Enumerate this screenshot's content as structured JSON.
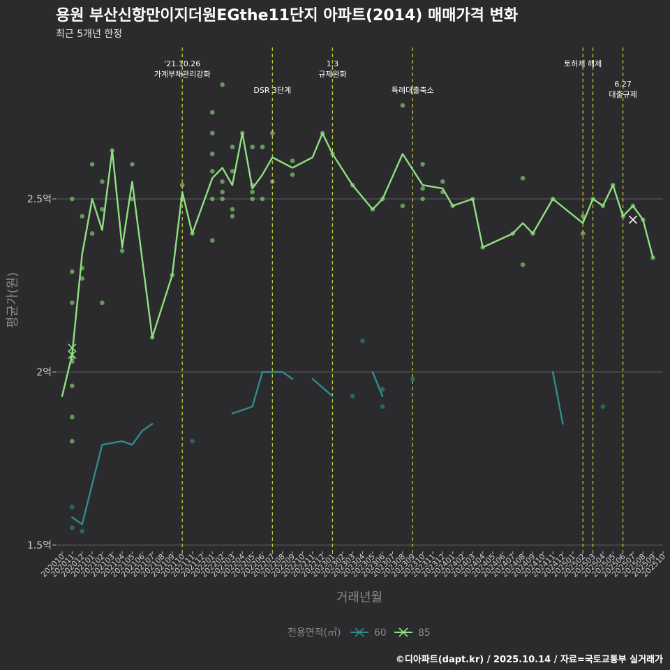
{
  "title": "용원 부산신항만이지더원EGthe11단지 아파트(2014) 매매가격 변화",
  "subtitle": "최근 5개년 한정",
  "caption": "©디아파트(dapt.kr) / 2025.10.14 / 자료=국토교통부 실거래가",
  "chart_data": {
    "type": "line",
    "xlabel": "거래년월",
    "ylabel": "평균가(원)",
    "ylim": [
      1.47,
      3.0
    ],
    "y_ticks": [
      {
        "value": 1.5,
        "label": "1.5억"
      },
      {
        "value": 2.0,
        "label": "2억"
      },
      {
        "value": 2.5,
        "label": "2.5억"
      }
    ],
    "categories": [
      "202010",
      "202011",
      "202012",
      "202101",
      "202102",
      "202103",
      "202104",
      "202105",
      "202106",
      "202107",
      "202108",
      "202109",
      "202110",
      "202111",
      "202112",
      "202201",
      "202202",
      "202203",
      "202204",
      "202205",
      "202206",
      "202207",
      "202208",
      "202209",
      "202210",
      "202211",
      "202212",
      "202301",
      "202302",
      "202303",
      "202304",
      "202305",
      "202306",
      "202307",
      "202308",
      "202309",
      "202310",
      "202311",
      "202312",
      "202401",
      "202402",
      "202403",
      "202404",
      "202405",
      "202406",
      "202407",
      "202408",
      "202409",
      "202410",
      "202411",
      "202412",
      "202501",
      "202502",
      "202503",
      "202504",
      "202505",
      "202506",
      "202507",
      "202508",
      "202509",
      "202510"
    ],
    "legend": {
      "title": "전용면적(㎡)",
      "items": [
        {
          "label": "60",
          "color": "#2e8d8f"
        },
        {
          "label": "85",
          "color": "#90e080"
        }
      ]
    },
    "colors": {
      "s60": "#2e8d8f",
      "s85": "#90e080",
      "event": "#c8d43a"
    },
    "events": [
      {
        "x": 12,
        "lines": [
          "'21.10.26",
          "가계부채관리강화"
        ],
        "row": 0
      },
      {
        "x": 21,
        "lines": [
          "DSR 3단계"
        ],
        "row": 1
      },
      {
        "x": 27,
        "lines": [
          "1.3",
          "규제완화"
        ],
        "row": 0
      },
      {
        "x": 35,
        "lines": [
          "특례대출축소"
        ],
        "row": 1
      },
      {
        "x": 52,
        "lines": [
          "토허제 해제"
        ],
        "row": 0
      },
      {
        "x": 53,
        "lines": [],
        "row": 0
      },
      {
        "x": 56,
        "lines": [
          "6.27",
          "대출규제"
        ],
        "row": 2
      }
    ],
    "series": [
      {
        "name": "60",
        "segments": [
          [
            [
              1,
              1.58
            ],
            [
              2,
              1.56
            ],
            [
              4,
              1.79
            ],
            [
              6,
              1.8
            ],
            [
              7,
              1.79
            ],
            [
              8,
              1.83
            ],
            [
              9,
              1.85
            ]
          ],
          [
            [
              17,
              1.88
            ],
            [
              19,
              1.9
            ],
            [
              20,
              2.0
            ],
            [
              22,
              2.0
            ],
            [
              23,
              1.98
            ]
          ],
          [
            [
              25,
              1.98
            ],
            [
              27,
              1.93
            ]
          ],
          [
            [
              31,
              2.0
            ],
            [
              32,
              1.93
            ]
          ],
          [
            [
              49,
              2.0
            ],
            [
              50,
              1.85
            ]
          ]
        ]
      },
      {
        "name": "85",
        "segments": [
          [
            [
              0,
              1.93
            ],
            [
              1,
              2.05
            ],
            [
              2,
              2.34
            ],
            [
              3,
              2.5
            ],
            [
              4,
              2.41
            ],
            [
              5,
              2.64
            ],
            [
              6,
              2.36
            ],
            [
              7,
              2.55
            ],
            [
              9,
              2.1
            ],
            [
              11,
              2.28
            ],
            [
              12,
              2.52
            ],
            [
              13,
              2.4
            ],
            [
              15,
              2.56
            ],
            [
              16,
              2.59
            ],
            [
              17,
              2.54
            ],
            [
              18,
              2.69
            ],
            [
              19,
              2.53
            ],
            [
              20,
              2.57
            ],
            [
              21,
              2.62
            ],
            [
              23,
              2.59
            ],
            [
              25,
              2.62
            ],
            [
              26,
              2.69
            ],
            [
              27,
              2.63
            ],
            [
              29,
              2.54
            ],
            [
              31,
              2.47
            ],
            [
              32,
              2.5
            ],
            [
              34,
              2.63
            ],
            [
              36,
              2.54
            ],
            [
              38,
              2.53
            ],
            [
              39,
              2.48
            ],
            [
              41,
              2.5
            ],
            [
              42,
              2.36
            ],
            [
              45,
              2.4
            ],
            [
              46,
              2.43
            ],
            [
              47,
              2.4
            ],
            [
              49,
              2.5
            ],
            [
              52,
              2.43
            ],
            [
              53,
              2.5
            ],
            [
              54,
              2.48
            ],
            [
              55,
              2.54
            ],
            [
              56,
              2.45
            ],
            [
              57,
              2.48
            ],
            [
              58,
              2.44
            ],
            [
              59,
              2.33
            ]
          ]
        ]
      }
    ],
    "points": {
      "60": [
        [
          1,
          1.61
        ],
        [
          1,
          1.55
        ],
        [
          2,
          1.54
        ],
        [
          13,
          1.8
        ],
        [
          30,
          2.09
        ],
        [
          29,
          1.93
        ],
        [
          32,
          1.9
        ],
        [
          32,
          1.95
        ],
        [
          35,
          1.98
        ],
        [
          54,
          1.9
        ]
      ],
      "85": [
        [
          1,
          2.5
        ],
        [
          1,
          2.29
        ],
        [
          1,
          2.2
        ],
        [
          1,
          2.03
        ],
        [
          1,
          2.04
        ],
        [
          1,
          1.96
        ],
        [
          1,
          1.87
        ],
        [
          1,
          1.8
        ],
        [
          2,
          2.45
        ],
        [
          2,
          2.3
        ],
        [
          2,
          2.27
        ],
        [
          3,
          2.6
        ],
        [
          3,
          2.4
        ],
        [
          4,
          2.55
        ],
        [
          4,
          2.47
        ],
        [
          4,
          2.2
        ],
        [
          5,
          2.64
        ],
        [
          6,
          2.35
        ],
        [
          7,
          2.6
        ],
        [
          7,
          2.5
        ],
        [
          9,
          2.1
        ],
        [
          11,
          2.28
        ],
        [
          12,
          2.54
        ],
        [
          12,
          2.5
        ],
        [
          13,
          2.4
        ],
        [
          15,
          2.75
        ],
        [
          15,
          2.69
        ],
        [
          15,
          2.63
        ],
        [
          15,
          2.58
        ],
        [
          15,
          2.5
        ],
        [
          15,
          2.38
        ],
        [
          16,
          2.83
        ],
        [
          16,
          2.55
        ],
        [
          16,
          2.52
        ],
        [
          16,
          2.5
        ],
        [
          17,
          2.65
        ],
        [
          17,
          2.58
        ],
        [
          17,
          2.47
        ],
        [
          17,
          2.45
        ],
        [
          18,
          2.69
        ],
        [
          19,
          2.65
        ],
        [
          19,
          2.54
        ],
        [
          19,
          2.52
        ],
        [
          19,
          2.5
        ],
        [
          20,
          2.65
        ],
        [
          20,
          2.5
        ],
        [
          21,
          2.69
        ],
        [
          21,
          2.55
        ],
        [
          23,
          2.61
        ],
        [
          23,
          2.57
        ],
        [
          26,
          2.69
        ],
        [
          27,
          2.63
        ],
        [
          29,
          2.54
        ],
        [
          31,
          2.47
        ],
        [
          32,
          2.5
        ],
        [
          34,
          2.77
        ],
        [
          34,
          2.48
        ],
        [
          36,
          2.6
        ],
        [
          36,
          2.53
        ],
        [
          36,
          2.5
        ],
        [
          38,
          2.55
        ],
        [
          38,
          2.52
        ],
        [
          39,
          2.48
        ],
        [
          41,
          2.5
        ],
        [
          42,
          2.36
        ],
        [
          45,
          2.4
        ],
        [
          46,
          2.56
        ],
        [
          46,
          2.31
        ],
        [
          47,
          2.4
        ],
        [
          49,
          2.5
        ],
        [
          52,
          2.45
        ],
        [
          52,
          2.4
        ],
        [
          53,
          2.5
        ],
        [
          54,
          2.48
        ],
        [
          55,
          2.54
        ],
        [
          56,
          2.45
        ],
        [
          57,
          2.48
        ],
        [
          58,
          2.44
        ],
        [
          59,
          2.33
        ]
      ]
    },
    "crosses": [
      {
        "series": "85",
        "x": 1,
        "y": 2.07
      },
      {
        "series": "85",
        "x": 1,
        "y": 2.05
      },
      {
        "series": "85",
        "x": 57,
        "y": 2.44
      }
    ]
  }
}
